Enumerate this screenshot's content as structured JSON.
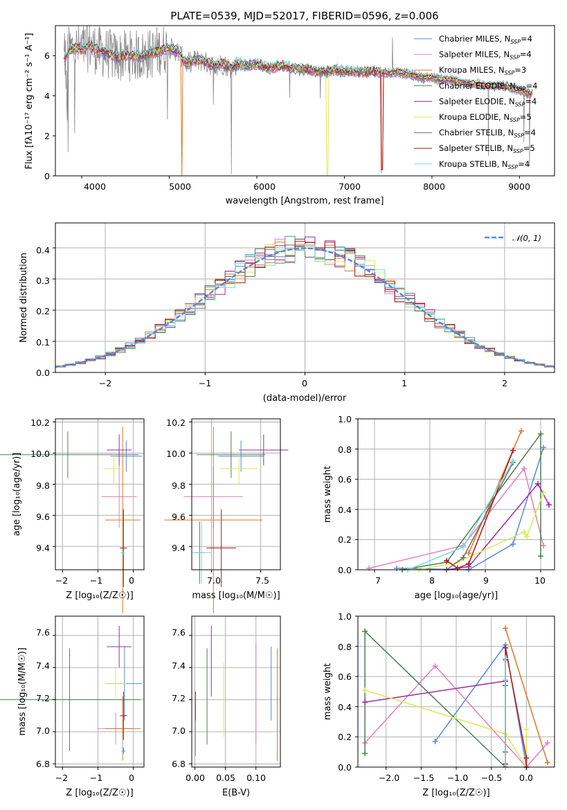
{
  "colors": {
    "chabrier_miles": "#5b86d6",
    "salpeter_miles": "#e57eb7",
    "kroupa_miles": "#e07720",
    "chabrier_elodie": "#4f7f56",
    "salpeter_elodie": "#9b2aaa",
    "kroupa_elodie": "#d8ea55",
    "chabrier_stelib": "#6d6d6d",
    "salpeter_stelib": "#b21616",
    "kroupa_stelib": "#78dcdc",
    "normal": "#5b86d6",
    "grid": "#b0b0b0"
  },
  "chart_data": [
    {
      "id": "spectrum",
      "type": "line",
      "title": "PLATE=0539, MJD=52017, FIBERID=0596, z=0.006",
      "xlabel": "wavelength [Angstrom, rest frame]",
      "ylabel": "Flux [fλ10⁻¹⁷ erg cm⁻² s⁻¹ A⁻¹]",
      "xlim": [
        3700,
        9400
      ],
      "ylim": [
        0,
        7.5
      ],
      "xticks": [
        "4000",
        "5000",
        "6000",
        "7000",
        "8000",
        "9000"
      ],
      "yticks": [
        "0",
        "2",
        "4",
        "6"
      ],
      "grid": false,
      "legend_position": "top-right",
      "legend": [
        "Chabrier MILES, N_SSP=4",
        "Salpeter MILES, N_SSP=4",
        "Kroupa MILES, N_SSP=3",
        "Chabrier ELODIE, N_SSP=4",
        "Salpeter ELODIE, N_SSP=4",
        "Kroupa ELODIE, N_SSP=5",
        "Chabrier STELIB, N_SSP=4",
        "Salpeter STELIB, N_SSP=5",
        "Kroupa STELIB, N_SSP=4"
      ],
      "legend_main": [
        "Chabrier MILES, N",
        "Salpeter MILES, N",
        "Kroupa MILES, N",
        "Chabrier ELODIE, N",
        "Salpeter ELODIE, N",
        "Kroupa ELODIE, N",
        "Chabrier STELIB, N",
        "Salpeter STELIB, N",
        "Kroupa STELIB, N"
      ],
      "legend_sub": "SSP",
      "legend_tail": [
        "=4",
        "=4",
        "=3",
        "=4",
        "=4",
        "=5",
        "=4",
        "=5",
        "=4"
      ],
      "continuum": {
        "x": [
          3800,
          3850,
          3900,
          4000,
          4100,
          4200,
          4300,
          4400,
          4500,
          4600,
          4700,
          4800,
          4900,
          5000,
          5100,
          5200,
          5300,
          5400,
          5500,
          5600,
          5700,
          5800,
          5900,
          6000,
          6100,
          6200,
          6300,
          6400,
          6500,
          6600,
          6700,
          6800,
          6900,
          7000,
          7100,
          7200,
          7300,
          7400,
          7500,
          7600,
          7700,
          7800,
          7900,
          8000,
          8100,
          8200,
          8300,
          8400,
          8500,
          8600,
          8700,
          8800,
          8900,
          9000,
          9100
        ],
        "y": [
          5.8,
          6.2,
          6.4,
          6.3,
          6.5,
          6.2,
          6.1,
          5.9,
          6.0,
          6.0,
          6.0,
          6.1,
          6.3,
          6.4,
          6.2,
          5.6,
          5.8,
          5.7,
          5.5,
          5.6,
          5.4,
          5.6,
          5.5,
          5.6,
          5.4,
          5.4,
          5.5,
          5.4,
          5.3,
          5.3,
          5.2,
          5.2,
          5.3,
          5.2,
          5.2,
          5.2,
          5.2,
          5.2,
          5.1,
          5.2,
          5.1,
          5.0,
          4.9,
          4.9,
          4.8,
          4.8,
          4.7,
          4.6,
          4.6,
          4.5,
          4.5,
          4.5,
          4.4,
          4.3,
          4.1
        ]
      }
    },
    {
      "id": "residuals",
      "type": "bar",
      "xlabel": "(data-model)/error",
      "ylabel": "Normed distribution",
      "xlim": [
        -2.5,
        2.5
      ],
      "ylim": [
        0,
        0.48
      ],
      "xticks": [
        "−2",
        "−1",
        "0",
        "1",
        "2"
      ],
      "yticks": [
        "0.0",
        "0.1",
        "0.2",
        "0.3",
        "0.4"
      ],
      "grid": true,
      "legend_position": "top-right",
      "legend": [
        "𝒩(0, 1)"
      ]
    },
    {
      "id": "age_vs_Z",
      "type": "scatter",
      "xlabel": "Z [log₁₀(Z/Z☉)]",
      "ylabel": "age  [log₁₀(age/yr)]",
      "xlim": [
        -2.2,
        0.3
      ],
      "ylim": [
        9.25,
        10.22
      ],
      "xticks": [
        "−2",
        "−1",
        "0"
      ],
      "yticks": [
        "9.4",
        "9.6",
        "9.8",
        "10.0",
        "10.2"
      ],
      "grid": true,
      "series": [
        {
          "key": "chabrier_miles",
          "x": -0.2,
          "xerr": 0.45,
          "y": 9.98,
          "yerr": 0.1
        },
        {
          "key": "salpeter_miles",
          "x": -0.4,
          "xerr": 0.5,
          "y": 9.72,
          "yerr": 0.2
        },
        {
          "key": "kroupa_miles",
          "x": -0.3,
          "xerr": 0.5,
          "y": 9.57,
          "yerr": 0.6
        },
        {
          "key": "chabrier_elodie",
          "x": -1.85,
          "xerr": 2.0,
          "y": 9.99,
          "yerr": 0.15
        },
        {
          "key": "salpeter_elodie",
          "x": -0.4,
          "xerr": 0.35,
          "y": 10.02,
          "yerr": 0.1
        },
        {
          "key": "kroupa_elodie",
          "x": -0.55,
          "xerr": 0.3,
          "y": 9.9,
          "yerr": 0.1
        },
        {
          "key": "chabrier_stelib",
          "x": -0.3,
          "xerr": 0.05,
          "y": 9.36,
          "yerr": 0.02
        },
        {
          "key": "salpeter_stelib",
          "x": -0.28,
          "xerr": 0.1,
          "y": 9.39,
          "yerr": 0.25
        },
        {
          "key": "kroupa_stelib",
          "x": -0.3,
          "xerr": 0.05,
          "y": 9.36,
          "yerr": 0.02
        }
      ]
    },
    {
      "id": "age_vs_mass",
      "type": "scatter",
      "xlabel": "mass [log₁₀(M/M☉)]",
      "ylabel": "",
      "xlim": [
        6.8,
        7.7
      ],
      "ylim": [
        9.25,
        10.22
      ],
      "xticks": [
        "7.0",
        "7.5"
      ],
      "yticks": [
        "9.4",
        "9.6",
        "9.8",
        "10.0",
        "10.2"
      ],
      "grid": true,
      "series": [
        {
          "key": "chabrier_miles",
          "x": 7.3,
          "xerr": 0.23,
          "y": 9.98,
          "yerr": 0.1
        },
        {
          "key": "salpeter_miles",
          "x": 7.02,
          "xerr": 0.3,
          "y": 9.72,
          "yerr": 0.2
        },
        {
          "key": "kroupa_miles",
          "x": 7.02,
          "xerr": 0.5,
          "y": 9.57,
          "yerr": 0.6
        },
        {
          "key": "chabrier_elodie",
          "x": 7.2,
          "xerr": 0.35,
          "y": 9.99,
          "yerr": 0.15
        },
        {
          "key": "salpeter_elodie",
          "x": 7.53,
          "xerr": 0.25,
          "y": 10.02,
          "yerr": 0.1
        },
        {
          "key": "kroupa_elodie",
          "x": 7.28,
          "xerr": 0.2,
          "y": 9.9,
          "yerr": 0.1
        },
        {
          "key": "chabrier_stelib",
          "x": 6.88,
          "xerr": 0.05,
          "y": 9.36,
          "yerr": 0.2
        },
        {
          "key": "salpeter_stelib",
          "x": 7.1,
          "xerr": 0.15,
          "y": 9.39,
          "yerr": 0.25
        },
        {
          "key": "kroupa_stelib",
          "x": 6.9,
          "xerr": 0.1,
          "y": 9.36,
          "yerr": 0.2
        }
      ]
    },
    {
      "id": "weight_vs_age",
      "type": "line",
      "xlabel": "age  [log₁₀(age/yr)]",
      "ylabel": "mass weight",
      "xlim": [
        6.7,
        10.25
      ],
      "ylim": [
        0,
        1.0
      ],
      "xticks": [
        "7",
        "8",
        "9",
        "10"
      ],
      "yticks": [
        "0.0",
        "0.2",
        "0.4",
        "0.6",
        "0.8",
        "1.0"
      ],
      "grid": true,
      "series": [
        {
          "key": "chabrier_miles",
          "x": [
            7.4,
            8.7,
            9.5,
            10.05
          ],
          "y": [
            0.01,
            0.0,
            0.17,
            0.81
          ]
        },
        {
          "key": "salpeter_miles",
          "x": [
            6.9,
            8.6,
            9.7,
            10.05
          ],
          "y": [
            0.01,
            0.16,
            0.67,
            0.16
          ]
        },
        {
          "key": "kroupa_miles",
          "x": [
            8.7,
            9.65
          ],
          "y": [
            0.11,
            0.92
          ]
        },
        {
          "key": "chabrier_elodie",
          "x": [
            7.5,
            8.3,
            10.0,
            10.0
          ],
          "y": [
            0.0,
            0.05,
            0.9,
            0.09
          ]
        },
        {
          "key": "salpeter_elodie",
          "x": [
            8.3,
            8.7,
            9.95,
            10.15
          ],
          "y": [
            0.0,
            0.02,
            0.57,
            0.43
          ]
        },
        {
          "key": "kroupa_elodie",
          "x": [
            7.8,
            8.5,
            9.7,
            9.75,
            10.05
          ],
          "y": [
            0.0,
            0.05,
            0.25,
            0.22,
            0.51
          ]
        },
        {
          "key": "chabrier_stelib",
          "x": [
            8.3,
            8.6,
            9.5
          ],
          "y": [
            0.0,
            0.08,
            0.71
          ]
        },
        {
          "key": "salpeter_stelib",
          "x": [
            8.3,
            8.5,
            8.7,
            9.5
          ],
          "y": [
            0.06,
            0.01,
            0.04,
            0.79
          ]
        },
        {
          "key": "kroupa_stelib",
          "x": [
            7.6,
            8.6,
            9.5
          ],
          "y": [
            0.0,
            0.15,
            0.72
          ]
        }
      ]
    },
    {
      "id": "mass_vs_Z",
      "type": "scatter",
      "xlabel": "Z [log₁₀(Z/Z☉)]",
      "ylabel": "mass [log₁₀(M/M☉)]",
      "xlim": [
        -2.2,
        0.3
      ],
      "ylim": [
        6.78,
        7.72
      ],
      "xticks": [
        "−2",
        "−1",
        "0"
      ],
      "yticks": [
        "6.8",
        "7.0",
        "7.2",
        "7.4",
        "7.6"
      ],
      "grid": true,
      "series": [
        {
          "key": "chabrier_miles",
          "x": -0.25,
          "xerr": 0.5,
          "y": 7.3,
          "yerr": 0.23
        },
        {
          "key": "salpeter_miles",
          "x": -0.5,
          "xerr": 0.5,
          "y": 7.02,
          "yerr": 0.1
        },
        {
          "key": "kroupa_miles",
          "x": -0.3,
          "xerr": 0.5,
          "y": 7.02,
          "yerr": 0.2
        },
        {
          "key": "chabrier_elodie",
          "x": -1.8,
          "xerr": 2.0,
          "y": 7.2,
          "yerr": 0.32
        },
        {
          "key": "salpeter_elodie",
          "x": -0.4,
          "xerr": 0.35,
          "y": 7.53,
          "yerr": 0.13
        },
        {
          "key": "kroupa_elodie",
          "x": -0.5,
          "xerr": 0.3,
          "y": 7.3,
          "yerr": 0.1
        },
        {
          "key": "chabrier_stelib",
          "x": -0.28,
          "xerr": 0.05,
          "y": 6.88,
          "yerr": 0.02
        },
        {
          "key": "salpeter_stelib",
          "x": -0.28,
          "xerr": 0.1,
          "y": 7.1,
          "yerr": 0.15
        },
        {
          "key": "kroupa_stelib",
          "x": -0.3,
          "xerr": 0.05,
          "y": 6.9,
          "yerr": 0.05
        }
      ]
    },
    {
      "id": "mass_vs_ebv",
      "type": "scatter",
      "xlabel": "E(B-V)",
      "ylabel": "",
      "xlim": [
        -0.005,
        0.14
      ],
      "ylim": [
        6.78,
        7.72
      ],
      "xticks": [
        "0.00",
        "0.05",
        "0.10"
      ],
      "yticks": [
        "6.8",
        "7.0",
        "7.2",
        "7.4",
        "7.6"
      ],
      "grid": true,
      "series": [
        {
          "key": "chabrier_miles",
          "x": 0.125,
          "y": 7.3,
          "yerr": 0.23
        },
        {
          "key": "salpeter_miles",
          "x": 0.1,
          "y": 7.24,
          "yerr": 0.31
        },
        {
          "key": "kroupa_miles",
          "x": 0.135,
          "y": 7.17,
          "yerr": 0.35
        },
        {
          "key": "chabrier_elodie",
          "x": 0.02,
          "y": 7.22,
          "yerr": 0.3
        },
        {
          "key": "salpeter_elodie",
          "x": 0.027,
          "y": 7.44,
          "yerr": 0.22
        },
        {
          "key": "kroupa_elodie",
          "x": 0.047,
          "y": 7.2,
          "yerr": 0.23
        },
        {
          "key": "chabrier_stelib",
          "x": 0.001,
          "y": 6.96,
          "yerr": 0.11
        },
        {
          "key": "salpeter_stelib",
          "x": 0.001,
          "y": 7.05,
          "yerr": 0.2
        },
        {
          "key": "kroupa_stelib",
          "x": 0.001,
          "y": 6.96,
          "yerr": 0.11
        }
      ]
    },
    {
      "id": "weight_vs_Z",
      "type": "line",
      "xlabel": "Z [log₁₀(Z/Z☉)]",
      "ylabel": "mass weight",
      "xlim": [
        -2.4,
        0.4
      ],
      "ylim": [
        0,
        1.0
      ],
      "xticks": [
        "−2.0",
        "−1.5",
        "−1.0",
        "−0.5",
        "0.0"
      ],
      "yticks": [
        "0.0",
        "0.2",
        "0.4",
        "0.6",
        "0.8",
        "1.0"
      ],
      "grid": true,
      "series": [
        {
          "key": "chabrier_miles",
          "x": [
            -1.3,
            -0.3,
            0.0
          ],
          "y": [
            0.17,
            0.81,
            0.0
          ]
        },
        {
          "key": "salpeter_miles",
          "x": [
            -2.3,
            -1.3,
            0.0,
            0.3
          ],
          "y": [
            0.16,
            0.67,
            0.0,
            0.16
          ]
        },
        {
          "key": "kroupa_miles",
          "x": [
            -0.3,
            0.3
          ],
          "y": [
            0.92,
            0.03
          ]
        },
        {
          "key": "chabrier_elodie",
          "x": [
            -2.3,
            -2.3,
            -0.3
          ],
          "y": [
            0.09,
            0.9,
            0.0
          ]
        },
        {
          "key": "salpeter_elodie",
          "x": [
            -2.3,
            -0.3
          ],
          "y": [
            0.43,
            0.57
          ]
        },
        {
          "key": "kroupa_elodie",
          "x": [
            -2.3,
            -0.3,
            0.0,
            0.0
          ],
          "y": [
            0.51,
            0.22,
            0.0,
            0.25
          ]
        },
        {
          "key": "chabrier_stelib",
          "x": [
            -0.3,
            -0.3,
            -0.3
          ],
          "y": [
            0.1,
            0.71,
            0.54
          ]
        },
        {
          "key": "salpeter_stelib",
          "x": [
            -0.3,
            -0.3,
            0.0,
            0.0
          ],
          "y": [
            0.02,
            0.79,
            0.06,
            0.0
          ]
        },
        {
          "key": "kroupa_stelib",
          "x": [
            -0.3,
            -0.3,
            -0.3
          ],
          "y": [
            0.0,
            0.72,
            0.58
          ]
        }
      ]
    }
  ]
}
